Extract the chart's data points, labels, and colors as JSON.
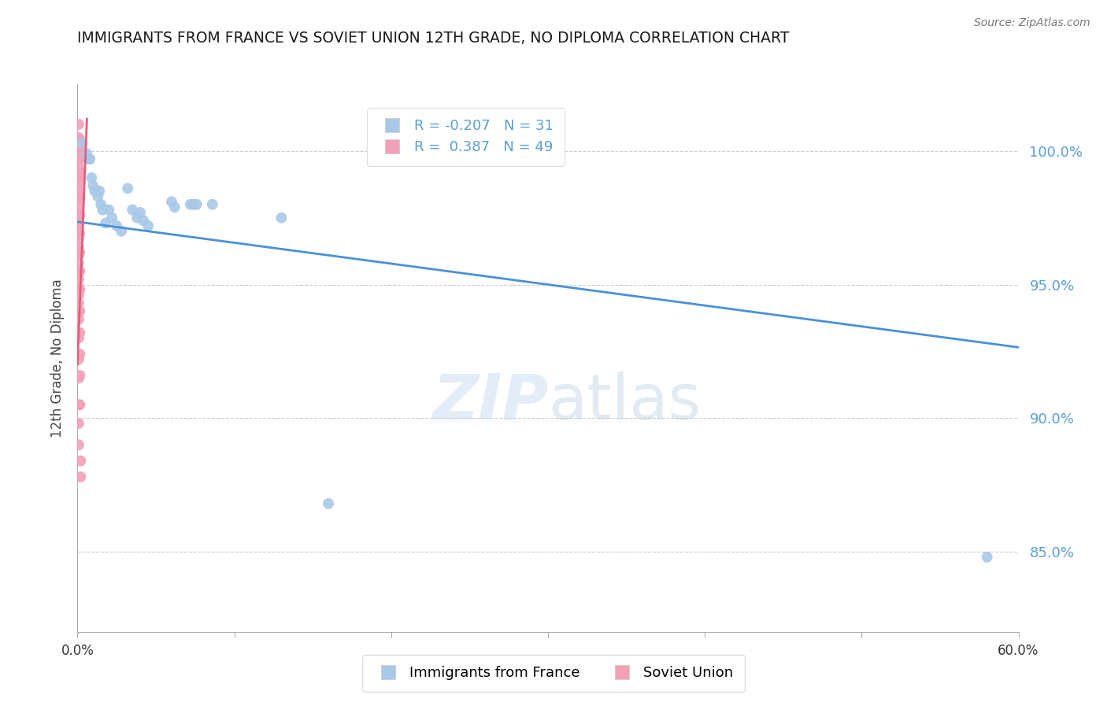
{
  "title": "IMMIGRANTS FROM FRANCE VS SOVIET UNION 12TH GRADE, NO DIPLOMA CORRELATION CHART",
  "source": "Source: ZipAtlas.com",
  "ylabel": "12th Grade, No Diploma",
  "xlim": [
    0.0,
    0.6
  ],
  "ylim": [
    0.82,
    1.025
  ],
  "yticks": [
    0.85,
    0.9,
    0.95,
    1.0
  ],
  "ytick_labels": [
    "85.0%",
    "90.0%",
    "95.0%",
    "100.0%"
  ],
  "xticks": [
    0.0,
    0.1,
    0.2,
    0.3,
    0.4,
    0.5,
    0.6
  ],
  "xtick_labels": [
    "0.0%",
    "",
    "",
    "",
    "",
    "",
    "60.0%"
  ],
  "france_color": "#a8c8e8",
  "soviet_color": "#f4a0b8",
  "france_R": -0.207,
  "france_N": 31,
  "soviet_R": 0.387,
  "soviet_N": 49,
  "legend_label_france": "Immigrants from France",
  "legend_label_soviet": "Soviet Union",
  "background_color": "#ffffff",
  "france_dots": [
    [
      0.003,
      1.003
    ],
    [
      0.006,
      0.999
    ],
    [
      0.007,
      0.997
    ],
    [
      0.008,
      0.997
    ],
    [
      0.009,
      0.99
    ],
    [
      0.01,
      0.987
    ],
    [
      0.011,
      0.985
    ],
    [
      0.013,
      0.983
    ],
    [
      0.014,
      0.985
    ],
    [
      0.015,
      0.98
    ],
    [
      0.016,
      0.978
    ],
    [
      0.018,
      0.973
    ],
    [
      0.02,
      0.978
    ],
    [
      0.022,
      0.975
    ],
    [
      0.025,
      0.972
    ],
    [
      0.028,
      0.97
    ],
    [
      0.032,
      0.986
    ],
    [
      0.035,
      0.978
    ],
    [
      0.038,
      0.975
    ],
    [
      0.04,
      0.977
    ],
    [
      0.042,
      0.974
    ],
    [
      0.045,
      0.972
    ],
    [
      0.06,
      0.981
    ],
    [
      0.062,
      0.979
    ],
    [
      0.072,
      0.98
    ],
    [
      0.074,
      0.98
    ],
    [
      0.076,
      0.98
    ],
    [
      0.086,
      0.98
    ],
    [
      0.13,
      0.975
    ],
    [
      0.16,
      0.868
    ],
    [
      0.58,
      0.848
    ]
  ],
  "soviet_dots": [
    [
      0.0008,
      1.01
    ],
    [
      0.0008,
      1.005
    ],
    [
      0.0008,
      1.002
    ],
    [
      0.0008,
      0.999
    ],
    [
      0.0008,
      0.997
    ],
    [
      0.0008,
      0.994
    ],
    [
      0.0008,
      0.991
    ],
    [
      0.0008,
      0.988
    ],
    [
      0.0008,
      0.985
    ],
    [
      0.0008,
      0.982
    ],
    [
      0.0008,
      0.979
    ],
    [
      0.0008,
      0.976
    ],
    [
      0.0008,
      0.973
    ],
    [
      0.0008,
      0.97
    ],
    [
      0.0008,
      0.967
    ],
    [
      0.0008,
      0.964
    ],
    [
      0.0008,
      0.961
    ],
    [
      0.0008,
      0.958
    ],
    [
      0.0008,
      0.955
    ],
    [
      0.0008,
      0.952
    ],
    [
      0.0008,
      0.949
    ],
    [
      0.0008,
      0.946
    ],
    [
      0.0008,
      0.943
    ],
    [
      0.0008,
      0.94
    ],
    [
      0.0008,
      0.937
    ],
    [
      0.0008,
      0.93
    ],
    [
      0.0008,
      0.922
    ],
    [
      0.0008,
      0.915
    ],
    [
      0.0008,
      0.905
    ],
    [
      0.0008,
      0.898
    ],
    [
      0.0008,
      0.89
    ],
    [
      0.0015,
      1.004
    ],
    [
      0.0015,
      0.997
    ],
    [
      0.0015,
      0.99
    ],
    [
      0.0015,
      0.983
    ],
    [
      0.0015,
      0.976
    ],
    [
      0.0015,
      0.969
    ],
    [
      0.0015,
      0.962
    ],
    [
      0.0015,
      0.955
    ],
    [
      0.0015,
      0.948
    ],
    [
      0.0015,
      0.94
    ],
    [
      0.0015,
      0.932
    ],
    [
      0.0015,
      0.924
    ],
    [
      0.0015,
      0.916
    ],
    [
      0.0015,
      0.905
    ],
    [
      0.002,
      1.001
    ],
    [
      0.002,
      0.992
    ],
    [
      0.002,
      0.884
    ],
    [
      0.002,
      0.878
    ]
  ],
  "france_trend_x": [
    0.0,
    0.6
  ],
  "france_trend_y": [
    0.9735,
    0.9265
  ],
  "soviet_trend_x": [
    0.0,
    0.006
  ],
  "soviet_trend_y": [
    0.92,
    1.012
  ],
  "france_trend_color": "#4a90d9",
  "soviet_trend_color": "#e0607a",
  "title_color": "#1a1a1a",
  "axis_label_color": "#5a9fd4",
  "dot_size": 100
}
